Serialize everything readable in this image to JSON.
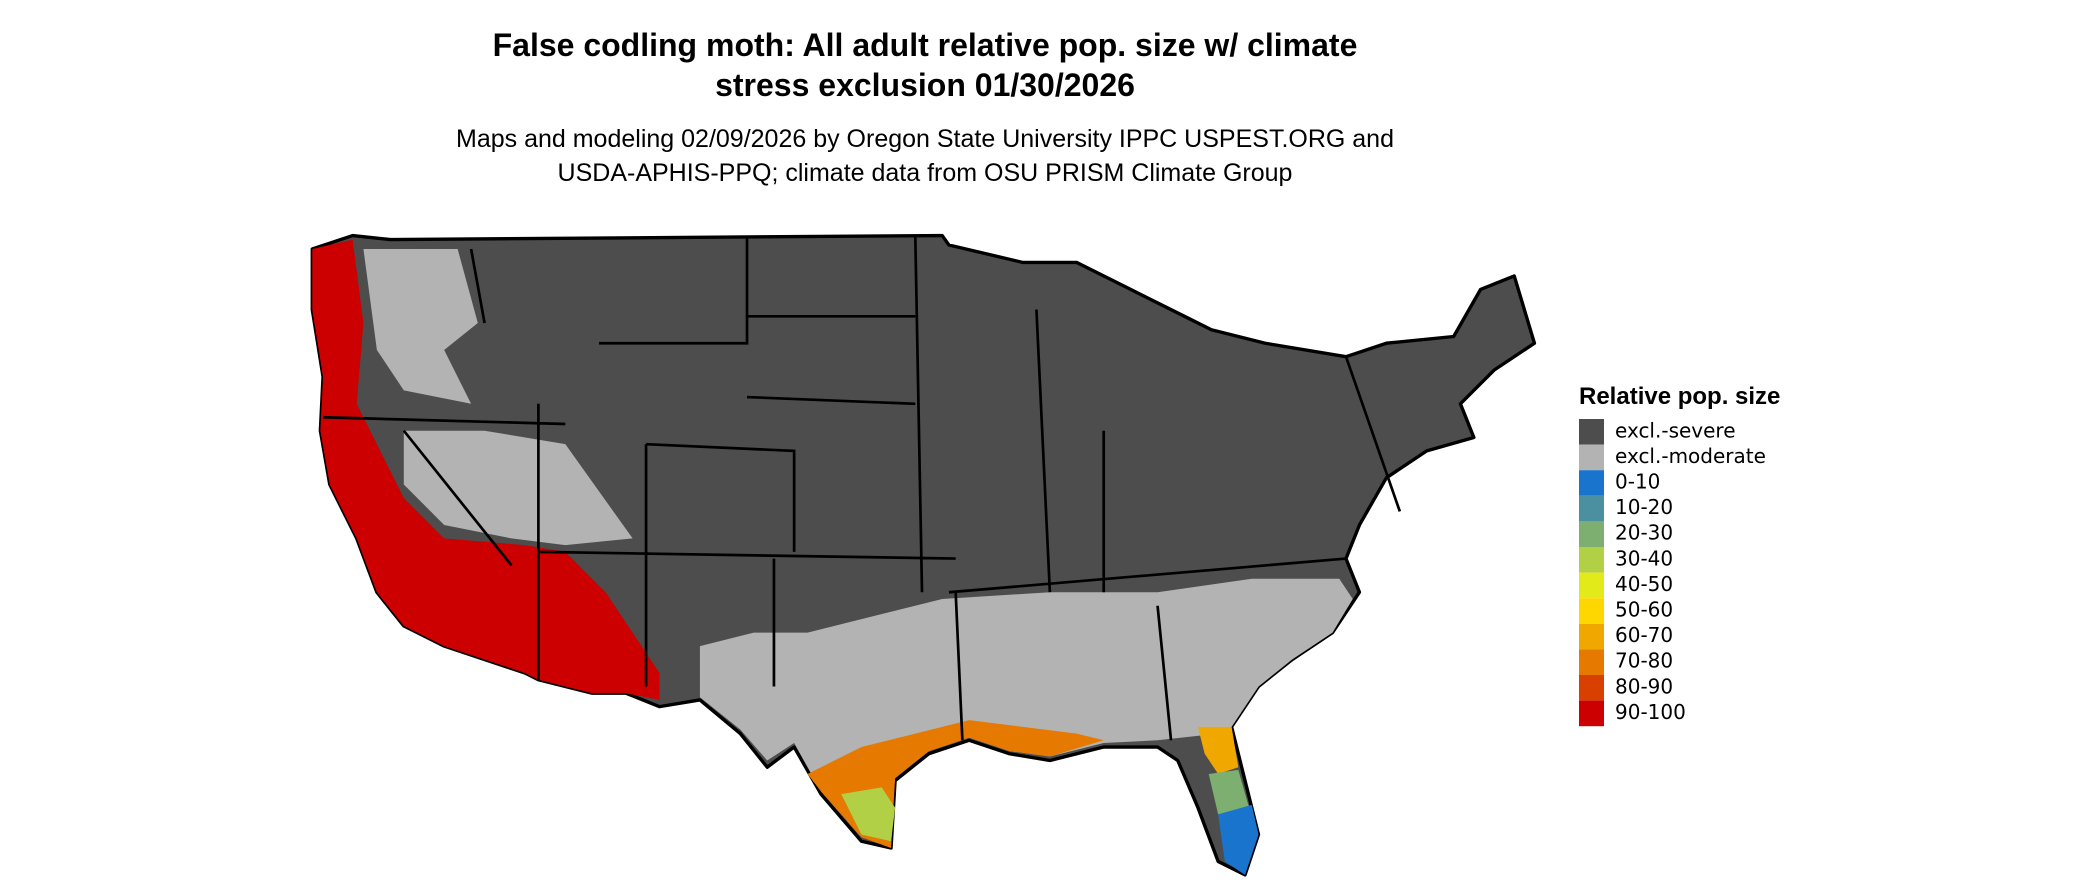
{
  "header": {
    "title": [
      "False codling moth: All adult relative pop. size w/ climate",
      "stress exclusion 01/30/2026"
    ],
    "subtitle": [
      "Maps and modeling 02/09/2026 by Oregon State University IPPC USPEST.ORG and",
      "USDA-APHIS-PPQ; climate data from OSU PRISM Climate Group"
    ]
  },
  "legend": {
    "title": "Relative pop. size",
    "items": [
      {
        "label": "excl.-severe",
        "color": "#4d4d4d"
      },
      {
        "label": "excl.-moderate",
        "color": "#b3b3b3"
      },
      {
        "label": "0-10",
        "color": "#1874cd"
      },
      {
        "label": "10-20",
        "color": "#4a90a0"
      },
      {
        "label": "20-30",
        "color": "#7caf70"
      },
      {
        "label": "30-40",
        "color": "#b2d045"
      },
      {
        "label": "40-50",
        "color": "#e3ea1a"
      },
      {
        "label": "50-60",
        "color": "#ffd700"
      },
      {
        "label": "60-70",
        "color": "#f0a800"
      },
      {
        "label": "70-80",
        "color": "#e67a00"
      },
      {
        "label": "80-90",
        "color": "#d94000"
      },
      {
        "label": "90-100",
        "color": "#cc0000"
      }
    ]
  }
}
